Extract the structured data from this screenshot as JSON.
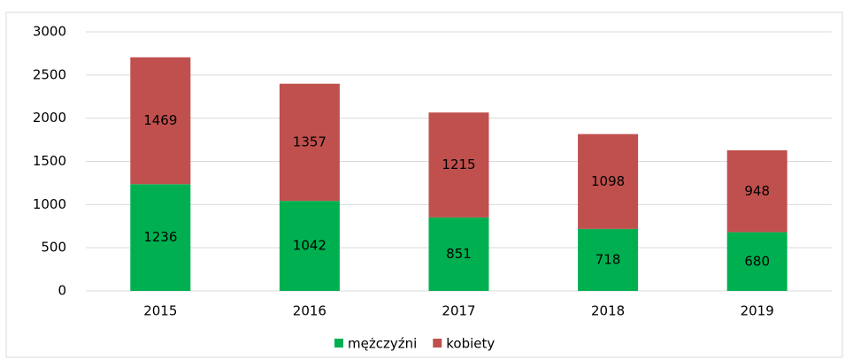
{
  "chart_data": {
    "type": "stacked_bar",
    "categories": [
      "2015",
      "2016",
      "2017",
      "2018",
      "2019"
    ],
    "series": [
      {
        "name": "mężczyźni",
        "color": "#00b050",
        "values": [
          1236,
          1042,
          851,
          718,
          680
        ]
      },
      {
        "name": "kobiety",
        "color": "#c0504d",
        "values": [
          1469,
          1357,
          1215,
          1098,
          948
        ]
      }
    ],
    "ylim": [
      0,
      3000
    ],
    "yticks": [
      0,
      500,
      1000,
      1500,
      2000,
      2500,
      3000
    ],
    "grid": true,
    "legend": "bottom",
    "data_labels": true
  }
}
